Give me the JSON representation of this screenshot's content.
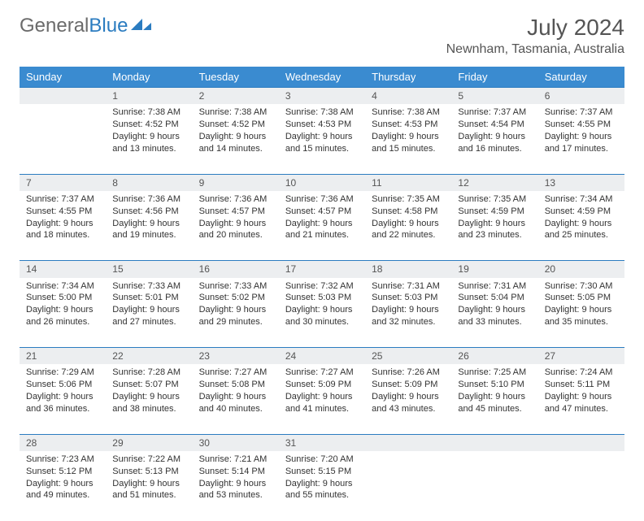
{
  "logo": {
    "text1": "General",
    "text2": "Blue"
  },
  "title": "July 2024",
  "location": "Newnham, Tasmania, Australia",
  "headers": [
    "Sunday",
    "Monday",
    "Tuesday",
    "Wednesday",
    "Thursday",
    "Friday",
    "Saturday"
  ],
  "colors": {
    "header_bg": "#3a8bd0",
    "header_fg": "#ffffff",
    "rule": "#2b7cc0",
    "daynum_bg": "#eceef0",
    "text": "#333333"
  },
  "weeks": [
    {
      "nums": [
        "",
        "1",
        "2",
        "3",
        "4",
        "5",
        "6"
      ],
      "cells": [
        "",
        "Sunrise: 7:38 AM\nSunset: 4:52 PM\nDaylight: 9 hours and 13 minutes.",
        "Sunrise: 7:38 AM\nSunset: 4:52 PM\nDaylight: 9 hours and 14 minutes.",
        "Sunrise: 7:38 AM\nSunset: 4:53 PM\nDaylight: 9 hours and 15 minutes.",
        "Sunrise: 7:38 AM\nSunset: 4:53 PM\nDaylight: 9 hours and 15 minutes.",
        "Sunrise: 7:37 AM\nSunset: 4:54 PM\nDaylight: 9 hours and 16 minutes.",
        "Sunrise: 7:37 AM\nSunset: 4:55 PM\nDaylight: 9 hours and 17 minutes."
      ]
    },
    {
      "nums": [
        "7",
        "8",
        "9",
        "10",
        "11",
        "12",
        "13"
      ],
      "cells": [
        "Sunrise: 7:37 AM\nSunset: 4:55 PM\nDaylight: 9 hours and 18 minutes.",
        "Sunrise: 7:36 AM\nSunset: 4:56 PM\nDaylight: 9 hours and 19 minutes.",
        "Sunrise: 7:36 AM\nSunset: 4:57 PM\nDaylight: 9 hours and 20 minutes.",
        "Sunrise: 7:36 AM\nSunset: 4:57 PM\nDaylight: 9 hours and 21 minutes.",
        "Sunrise: 7:35 AM\nSunset: 4:58 PM\nDaylight: 9 hours and 22 minutes.",
        "Sunrise: 7:35 AM\nSunset: 4:59 PM\nDaylight: 9 hours and 23 minutes.",
        "Sunrise: 7:34 AM\nSunset: 4:59 PM\nDaylight: 9 hours and 25 minutes."
      ]
    },
    {
      "nums": [
        "14",
        "15",
        "16",
        "17",
        "18",
        "19",
        "20"
      ],
      "cells": [
        "Sunrise: 7:34 AM\nSunset: 5:00 PM\nDaylight: 9 hours and 26 minutes.",
        "Sunrise: 7:33 AM\nSunset: 5:01 PM\nDaylight: 9 hours and 27 minutes.",
        "Sunrise: 7:33 AM\nSunset: 5:02 PM\nDaylight: 9 hours and 29 minutes.",
        "Sunrise: 7:32 AM\nSunset: 5:03 PM\nDaylight: 9 hours and 30 minutes.",
        "Sunrise: 7:31 AM\nSunset: 5:03 PM\nDaylight: 9 hours and 32 minutes.",
        "Sunrise: 7:31 AM\nSunset: 5:04 PM\nDaylight: 9 hours and 33 minutes.",
        "Sunrise: 7:30 AM\nSunset: 5:05 PM\nDaylight: 9 hours and 35 minutes."
      ]
    },
    {
      "nums": [
        "21",
        "22",
        "23",
        "24",
        "25",
        "26",
        "27"
      ],
      "cells": [
        "Sunrise: 7:29 AM\nSunset: 5:06 PM\nDaylight: 9 hours and 36 minutes.",
        "Sunrise: 7:28 AM\nSunset: 5:07 PM\nDaylight: 9 hours and 38 minutes.",
        "Sunrise: 7:27 AM\nSunset: 5:08 PM\nDaylight: 9 hours and 40 minutes.",
        "Sunrise: 7:27 AM\nSunset: 5:09 PM\nDaylight: 9 hours and 41 minutes.",
        "Sunrise: 7:26 AM\nSunset: 5:09 PM\nDaylight: 9 hours and 43 minutes.",
        "Sunrise: 7:25 AM\nSunset: 5:10 PM\nDaylight: 9 hours and 45 minutes.",
        "Sunrise: 7:24 AM\nSunset: 5:11 PM\nDaylight: 9 hours and 47 minutes."
      ]
    },
    {
      "nums": [
        "28",
        "29",
        "30",
        "31",
        "",
        "",
        ""
      ],
      "cells": [
        "Sunrise: 7:23 AM\nSunset: 5:12 PM\nDaylight: 9 hours and 49 minutes.",
        "Sunrise: 7:22 AM\nSunset: 5:13 PM\nDaylight: 9 hours and 51 minutes.",
        "Sunrise: 7:21 AM\nSunset: 5:14 PM\nDaylight: 9 hours and 53 minutes.",
        "Sunrise: 7:20 AM\nSunset: 5:15 PM\nDaylight: 9 hours and 55 minutes.",
        "",
        "",
        ""
      ]
    }
  ]
}
